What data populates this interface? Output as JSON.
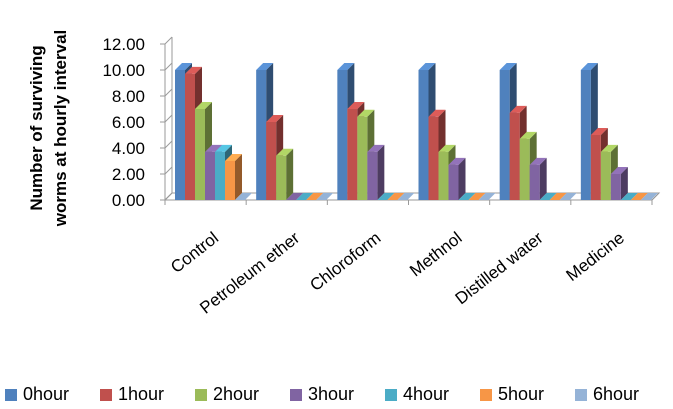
{
  "chart_data": {
    "type": "bar",
    "title": "",
    "xlabel": "",
    "ylabel": "Number of surviving worms at hourly interval",
    "ylabel_lines": [
      "Number of surviving",
      "worms at hourly interval"
    ],
    "ylim": [
      0,
      12
    ],
    "yticks": [
      "0.00",
      "2.00",
      "4.00",
      "6.00",
      "8.00",
      "10.00",
      "12.00"
    ],
    "categories": [
      "Control",
      "Petroleum ether",
      "Chloroform",
      "Methnol",
      "Distilled water",
      "Medicine"
    ],
    "series": [
      {
        "name": "0hour",
        "color": "#4F81BD",
        "values": [
          10,
          10,
          10,
          10,
          10,
          10
        ]
      },
      {
        "name": "1hour",
        "color": "#C0504D",
        "values": [
          9.7,
          6,
          7,
          6.4,
          6.7,
          5
        ]
      },
      {
        "name": "2hour",
        "color": "#9BBB59",
        "values": [
          7,
          3.4,
          6.4,
          3.7,
          4.7,
          3.7
        ]
      },
      {
        "name": "3hour",
        "color": "#8064A2",
        "values": [
          3.7,
          0,
          3.7,
          2.7,
          2.7,
          2
        ]
      },
      {
        "name": "4hour",
        "color": "#4BACC6",
        "values": [
          3.7,
          0,
          0,
          0,
          0,
          0
        ]
      },
      {
        "name": "5hour",
        "color": "#F79646",
        "values": [
          3,
          0,
          0,
          0,
          0,
          0
        ]
      },
      {
        "name": "6hour",
        "color": "#95B3D7",
        "values": [
          0,
          0,
          0,
          0,
          0,
          0
        ]
      }
    ],
    "grid": false,
    "legend_position": "bottom",
    "style": "3d-clustered-column"
  }
}
